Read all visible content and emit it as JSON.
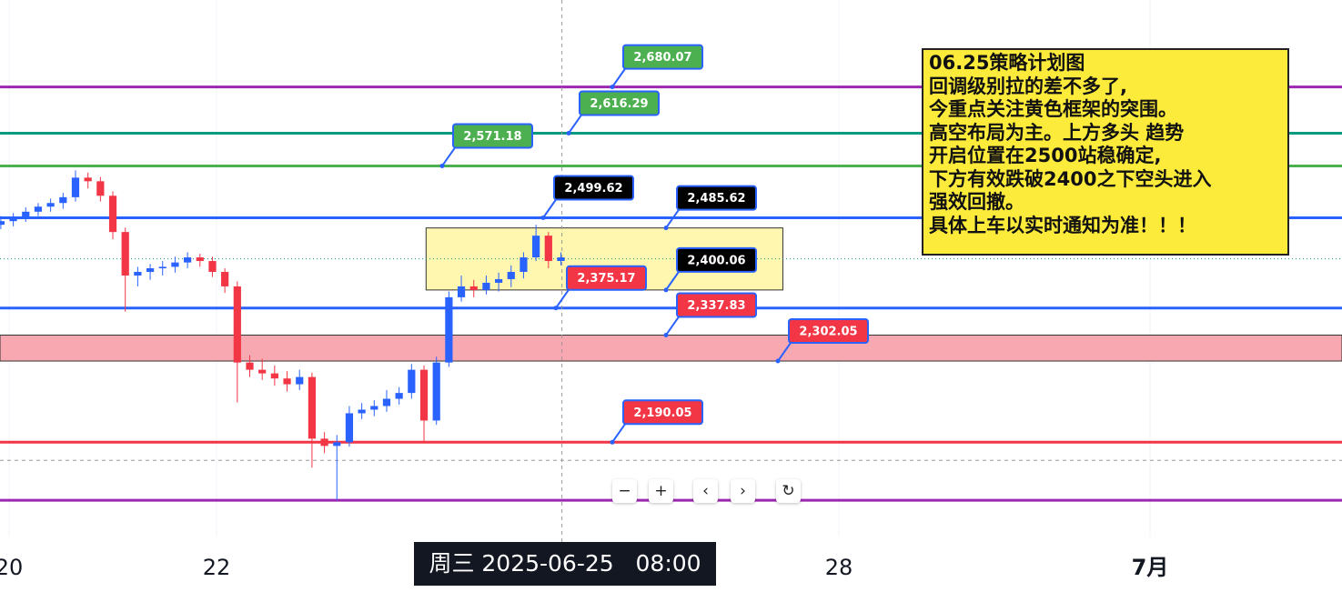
{
  "chart_data": {
    "type": "candlestick",
    "xlim": [
      19.912,
      32.851
    ],
    "ylim": [
      2060,
      2800
    ],
    "xticks": [
      20,
      22,
      28,
      {
        "value": 31,
        "label": "7月"
      }
    ],
    "x": [
      19.92,
      20.04,
      20.16,
      20.28,
      20.4,
      20.52,
      20.64,
      20.76,
      20.88,
      21.0,
      21.12,
      21.24,
      21.36,
      21.48,
      21.6,
      21.72,
      21.84,
      21.96,
      22.08,
      22.2,
      22.32,
      22.44,
      22.56,
      22.68,
      22.8,
      22.92,
      23.04,
      23.16,
      23.28,
      23.4,
      23.52,
      23.64,
      23.76,
      23.88,
      24.0,
      24.12,
      24.24,
      24.36,
      24.48,
      24.6,
      24.72,
      24.84,
      24.96,
      25.08,
      25.2,
      25.32
    ],
    "ohlc": [
      [
        2490,
        2502,
        2484,
        2495
      ],
      [
        2495,
        2506,
        2488,
        2500
      ],
      [
        2500,
        2514,
        2494,
        2508
      ],
      [
        2508,
        2520,
        2502,
        2515
      ],
      [
        2515,
        2526,
        2508,
        2520
      ],
      [
        2520,
        2534,
        2512,
        2528
      ],
      [
        2528,
        2565,
        2522,
        2555
      ],
      [
        2555,
        2562,
        2540,
        2550
      ],
      [
        2550,
        2556,
        2522,
        2530
      ],
      [
        2530,
        2536,
        2470,
        2480
      ],
      [
        2480,
        2486,
        2370,
        2420
      ],
      [
        2420,
        2432,
        2405,
        2425
      ],
      [
        2425,
        2436,
        2414,
        2430
      ],
      [
        2430,
        2440,
        2420,
        2432
      ],
      [
        2432,
        2446,
        2424,
        2438
      ],
      [
        2438,
        2452,
        2430,
        2445
      ],
      [
        2445,
        2450,
        2432,
        2440
      ],
      [
        2440,
        2446,
        2418,
        2425
      ],
      [
        2425,
        2430,
        2396,
        2405
      ],
      [
        2405,
        2412,
        2245,
        2300
      ],
      [
        2300,
        2310,
        2280,
        2290
      ],
      [
        2290,
        2305,
        2276,
        2285
      ],
      [
        2285,
        2296,
        2268,
        2278
      ],
      [
        2278,
        2288,
        2260,
        2270
      ],
      [
        2270,
        2290,
        2262,
        2280
      ],
      [
        2280,
        2286,
        2155,
        2195
      ],
      [
        2195,
        2204,
        2175,
        2185
      ],
      [
        2185,
        2200,
        2110,
        2190
      ],
      [
        2190,
        2240,
        2184,
        2230
      ],
      [
        2230,
        2244,
        2222,
        2235
      ],
      [
        2235,
        2248,
        2226,
        2240
      ],
      [
        2240,
        2262,
        2232,
        2250
      ],
      [
        2250,
        2266,
        2242,
        2258
      ],
      [
        2258,
        2298,
        2250,
        2290
      ],
      [
        2290,
        2296,
        2190,
        2220
      ],
      [
        2220,
        2308,
        2214,
        2300
      ],
      [
        2300,
        2398,
        2294,
        2390
      ],
      [
        2390,
        2420,
        2384,
        2405
      ],
      [
        2405,
        2414,
        2390,
        2400
      ],
      [
        2400,
        2420,
        2394,
        2410
      ],
      [
        2410,
        2424,
        2398,
        2415
      ],
      [
        2415,
        2434,
        2404,
        2425
      ],
      [
        2425,
        2452,
        2416,
        2445
      ],
      [
        2445,
        2490,
        2440,
        2475
      ],
      [
        2475,
        2480,
        2430,
        2440
      ],
      [
        2440,
        2452,
        2434,
        2445
      ]
    ],
    "up_color": "#2962ff",
    "down_color": "#f23645",
    "levels": [
      {
        "value": 2680.07,
        "color": "#9c27b0"
      },
      {
        "value": 2616.29,
        "color": "#089981"
      },
      {
        "value": 2571.18,
        "color": "#4caf50"
      },
      {
        "value": 2499.62,
        "color": "#2962ff"
      },
      {
        "value": 2375.17,
        "color": "#2962ff"
      },
      {
        "value": 2190.05,
        "color": "#f23645"
      },
      {
        "value": 2110,
        "color": "#9c27b0"
      }
    ],
    "price_line": 2443,
    "crosshair_price": 2165,
    "zone": {
      "top": 2337.83,
      "bottom": 2302.05,
      "color": "#f7a8b0"
    },
    "box": {
      "top": 2485.62,
      "bottom": 2400.06,
      "x": [
        24.02,
        27.46
      ],
      "color": "#fff7b0"
    },
    "callouts": [
      {
        "label": "2,680.07",
        "value": 2680.07,
        "color": "#4caf50"
      },
      {
        "label": "2,616.29",
        "value": 2616.29,
        "color": "#4caf50"
      },
      {
        "label": "2,571.18",
        "value": 2571.18,
        "color": "#4caf50"
      },
      {
        "label": "2,499.62",
        "value": 2499.62,
        "color": "#000000"
      },
      {
        "label": "2,485.62",
        "value": 2485.62,
        "color": "#000000"
      },
      {
        "label": "2,400.06",
        "value": 2400.06,
        "color": "#000000"
      },
      {
        "label": "2,375.17",
        "value": 2375.17,
        "color": "#f23645"
      },
      {
        "label": "2,337.83",
        "value": 2337.83,
        "color": "#f23645"
      },
      {
        "label": "2,302.05",
        "value": 2302.05,
        "color": "#f23645"
      },
      {
        "label": "2,190.05",
        "value": 2190.05,
        "color": "#f23645"
      }
    ],
    "crosshair": {
      "x": 25.33,
      "label": "周三 2025-06-25   08:00"
    },
    "note": [
      "06.25策略计划图",
      "回调级别拉的差不多了,",
      "今重点关注黄色框架的突围。",
      "高空布局为主。上方多头 趋势",
      "开启位置在2500站稳确定,",
      "下方有效跌破2400之下空头进入",
      "强效回撤。",
      "具体上车以实时通知为准！！！"
    ],
    "toolbar": [
      "−",
      "+",
      "‹",
      "›",
      "↻"
    ]
  }
}
